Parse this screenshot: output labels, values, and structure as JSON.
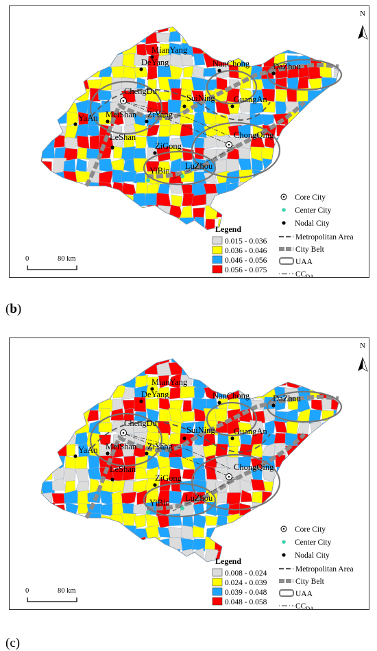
{
  "north_label": "N",
  "scale": {
    "start": "0",
    "end": "80 km"
  },
  "cities": {
    "mianyang": "MianYang",
    "deyang": "DeYang",
    "nanchong": "NanChong",
    "dazhou": "DaZhou",
    "chengdu": "ChengDu",
    "suining": "SuiNing",
    "guangan": "GuangAn",
    "yaan": "YaAn",
    "meishan": "MeiShan",
    "ziyang": "ZiYang",
    "leshan": "LeShan",
    "chongqing": "ChongQing",
    "zigong": "ZiGong",
    "yibin": "YiBin",
    "luzhou": "LuZhou"
  },
  "legend_symbols": {
    "core_city": "Core City",
    "center_city": "Center City",
    "nodal_city": "Nodal City",
    "metropolitan_area": "Metropolitan Area",
    "city_belt": "City Belt",
    "uaa": "UAA",
    "cc_main": "CC",
    "cc_sub": "DA"
  },
  "legend_title": "Legend",
  "colors": {
    "class1": "#dcdcdc",
    "class2": "#ffff00",
    "class3": "#1ea5ff",
    "class4": "#ff0000",
    "belt": "#8c8c8c",
    "center_city": "#3fd3b0"
  },
  "panels": [
    {
      "caption_letter": "b",
      "classes": [
        "0.015 - 0.036",
        "0.036 - 0.046",
        "0.046 - 0.056",
        "0.056 - 0.075"
      ]
    },
    {
      "caption_letter": "c",
      "classes": [
        "0.008 - 0.024",
        "0.024 - 0.039",
        "0.039 - 0.048",
        "0.048 - 0.058"
      ]
    }
  ]
}
